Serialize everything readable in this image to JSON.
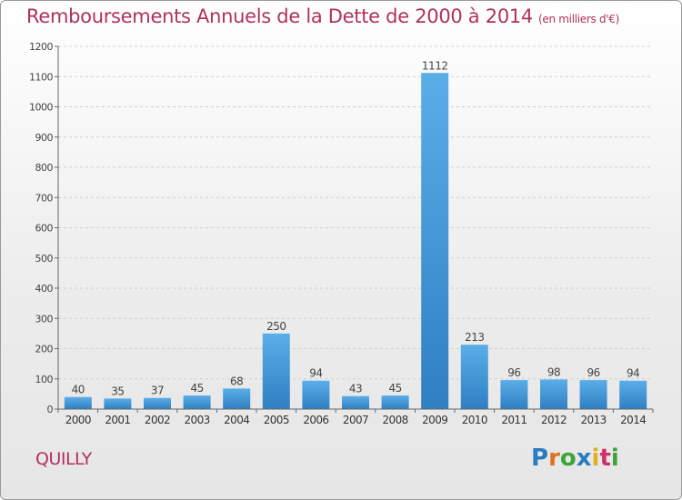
{
  "header": {
    "title": "Remboursements Annuels de la Dette de 2000 à 2014",
    "unit": "(en milliers d'€)"
  },
  "footer": {
    "place": "QUILLY",
    "logo_text": "Proxiti"
  },
  "colors": {
    "title": "#b03060",
    "bar_top": "#5aaee8",
    "bar_bottom": "#2f7fc2"
  },
  "chart_data": {
    "type": "bar",
    "categories": [
      "2000",
      "2001",
      "2002",
      "2003",
      "2004",
      "2005",
      "2006",
      "2007",
      "2008",
      "2009",
      "2010",
      "2011",
      "2012",
      "2013",
      "2014"
    ],
    "values": [
      40,
      35,
      37,
      45,
      68,
      250,
      94,
      43,
      45,
      1112,
      213,
      96,
      98,
      96,
      94
    ],
    "title": "Remboursements Annuels de la Dette de 2000 à 2014",
    "xlabel": "",
    "ylabel": "",
    "ylim": [
      0,
      1200
    ],
    "yticks": [
      0,
      100,
      200,
      300,
      400,
      500,
      600,
      700,
      800,
      900,
      1000,
      1100,
      1200
    ],
    "grid": true,
    "data_labels": true
  }
}
